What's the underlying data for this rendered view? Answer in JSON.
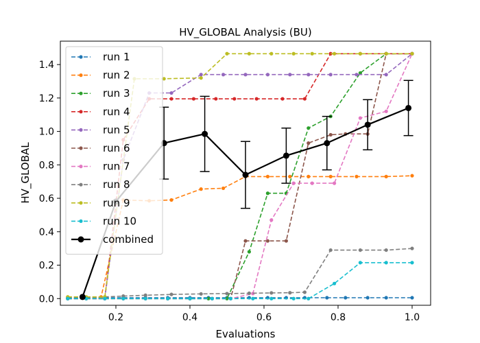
{
  "chart_data": {
    "type": "line",
    "title": "HV_GLOBAL Analysis (BU)",
    "xlabel": "Evaluations",
    "ylabel": "HV_GLOBAL",
    "xlim": [
      0.05,
      1.05
    ],
    "ylim": [
      -0.04,
      1.54
    ],
    "xticks": [
      0.2,
      0.4,
      0.6,
      0.8,
      1.0
    ],
    "xtick_labels": [
      "0.2",
      "0.4",
      "0.6",
      "0.8",
      "1.0"
    ],
    "yticks": [
      0.0,
      0.2,
      0.4,
      0.6,
      0.8,
      1.0,
      1.2,
      1.4
    ],
    "ytick_labels": [
      "0.0",
      "0.2",
      "0.4",
      "0.6",
      "0.8",
      "1.0",
      "1.2",
      "1.4"
    ],
    "legend_position": "upper-left",
    "series": [
      {
        "name": "run 1",
        "color": "#1f77b4",
        "x": [
          0.07,
          0.12,
          0.17,
          0.22,
          0.28,
          0.34,
          0.4,
          0.45,
          0.5,
          0.56,
          0.61,
          0.66,
          0.71,
          0.77,
          0.82,
          0.88,
          0.93,
          1.0
        ],
        "y": [
          0.005,
          0.005,
          0.005,
          0.005,
          0.005,
          0.005,
          0.005,
          0.005,
          0.005,
          0.005,
          0.005,
          0.005,
          0.005,
          0.005,
          0.005,
          0.005,
          0.005,
          0.005
        ]
      },
      {
        "name": "run 2",
        "color": "#ff7f0e",
        "x": [
          0.07,
          0.11,
          0.16,
          0.22,
          0.29,
          0.35,
          0.43,
          0.49,
          0.55,
          0.61,
          0.67,
          0.72,
          0.78,
          0.85,
          0.93,
          1.0
        ],
        "y": [
          0.01,
          0.01,
          0.01,
          0.59,
          0.585,
          0.59,
          0.655,
          0.66,
          0.73,
          0.73,
          0.73,
          0.73,
          0.73,
          0.73,
          0.73,
          0.735
        ]
      },
      {
        "name": "run 3",
        "color": "#2ca02c",
        "x": [
          0.07,
          0.12,
          0.17,
          0.22,
          0.28,
          0.34,
          0.4,
          0.45,
          0.5,
          0.56,
          0.61,
          0.66,
          0.72,
          0.78,
          0.86,
          0.93,
          1.0
        ],
        "y": [
          0.0,
          0.0,
          0.0,
          0.0,
          0.0,
          0.0,
          0.0,
          0.0,
          0.0,
          0.28,
          0.63,
          0.63,
          1.02,
          1.09,
          1.35,
          1.465,
          1.465
        ]
      },
      {
        "name": "run 4",
        "color": "#d62728",
        "x": [
          0.07,
          0.12,
          0.17,
          0.22,
          0.29,
          0.35,
          0.41,
          0.47,
          0.52,
          0.58,
          0.65,
          0.71,
          0.78,
          0.86,
          0.93,
          1.0
        ],
        "y": [
          0.0,
          0.0,
          0.0,
          0.95,
          1.195,
          1.195,
          1.195,
          1.195,
          1.195,
          1.195,
          1.195,
          1.195,
          1.465,
          1.465,
          1.465,
          1.465
        ]
      },
      {
        "name": "run 5",
        "color": "#9467bd",
        "x": [
          0.07,
          0.12,
          0.17,
          0.22,
          0.29,
          0.35,
          0.43,
          0.49,
          0.55,
          0.61,
          0.67,
          0.72,
          0.78,
          0.85,
          0.93,
          1.0
        ],
        "y": [
          0.0,
          0.0,
          0.0,
          0.83,
          1.23,
          1.23,
          1.34,
          1.34,
          1.34,
          1.34,
          1.34,
          1.34,
          1.34,
          1.34,
          1.34,
          1.465
        ]
      },
      {
        "name": "run 6",
        "color": "#8c564b",
        "x": [
          0.07,
          0.12,
          0.17,
          0.22,
          0.28,
          0.34,
          0.4,
          0.46,
          0.51,
          0.55,
          0.61,
          0.66,
          0.72,
          0.78,
          0.82,
          0.88,
          0.93,
          1.0
        ],
        "y": [
          0.0,
          0.0,
          0.0,
          0.0,
          0.0,
          0.0,
          0.0,
          0.0,
          0.0,
          0.345,
          0.345,
          0.345,
          0.93,
          0.98,
          0.985,
          0.985,
          1.465,
          1.465
        ]
      },
      {
        "name": "run 7",
        "color": "#e377c2",
        "x": [
          0.07,
          0.12,
          0.17,
          0.22,
          0.28,
          0.34,
          0.4,
          0.46,
          0.51,
          0.57,
          0.62,
          0.68,
          0.73,
          0.79,
          0.86,
          0.93,
          1.0
        ],
        "y": [
          0.0,
          0.0,
          0.0,
          0.0,
          0.0,
          0.0,
          0.0,
          0.0,
          0.0,
          0.03,
          0.47,
          0.69,
          0.69,
          0.69,
          1.08,
          1.12,
          1.465
        ]
      },
      {
        "name": "run 8",
        "color": "#7f7f7f",
        "x": [
          0.07,
          0.12,
          0.17,
          0.22,
          0.28,
          0.35,
          0.43,
          0.5,
          0.56,
          0.62,
          0.67,
          0.71,
          0.78,
          0.86,
          0.93,
          1.0
        ],
        "y": [
          0.0,
          0.0,
          0.01,
          0.015,
          0.02,
          0.025,
          0.028,
          0.03,
          0.032,
          0.034,
          0.035,
          0.038,
          0.29,
          0.29,
          0.29,
          0.3
        ]
      },
      {
        "name": "run 9",
        "color": "#bcbd22",
        "x": [
          0.07,
          0.12,
          0.17,
          0.25,
          0.33,
          0.43,
          0.5,
          0.56,
          0.62,
          0.68,
          0.73,
          0.79,
          0.86,
          0.93,
          1.0
        ],
        "y": [
          0.01,
          0.01,
          0.01,
          1.315,
          1.315,
          1.32,
          1.465,
          1.465,
          1.465,
          1.465,
          1.465,
          1.465,
          1.465,
          1.465,
          1.465
        ]
      },
      {
        "name": "run 10",
        "color": "#17becf",
        "x": [
          0.07,
          0.12,
          0.17,
          0.22,
          0.28,
          0.34,
          0.4,
          0.46,
          0.51,
          0.57,
          0.62,
          0.68,
          0.72,
          0.79,
          0.86,
          0.93,
          1.0
        ],
        "y": [
          0.0,
          0.0,
          0.0,
          0.0,
          0.0,
          0.0,
          0.0,
          0.0,
          0.0,
          0.0,
          0.0,
          0.0,
          0.0,
          0.09,
          0.215,
          0.215,
          0.215
        ]
      },
      {
        "name": "combined",
        "color": "#000000",
        "x": [
          0.11,
          0.2,
          0.33,
          0.44,
          0.55,
          0.66,
          0.77,
          0.88,
          0.99
        ],
        "y": [
          0.01,
          0.58,
          0.93,
          0.985,
          0.74,
          0.855,
          0.93,
          1.04,
          1.14
        ],
        "yerr": [
          0.0,
          0.0,
          0.215,
          0.225,
          0.2,
          0.165,
          0.16,
          0.15,
          0.165
        ]
      }
    ]
  }
}
